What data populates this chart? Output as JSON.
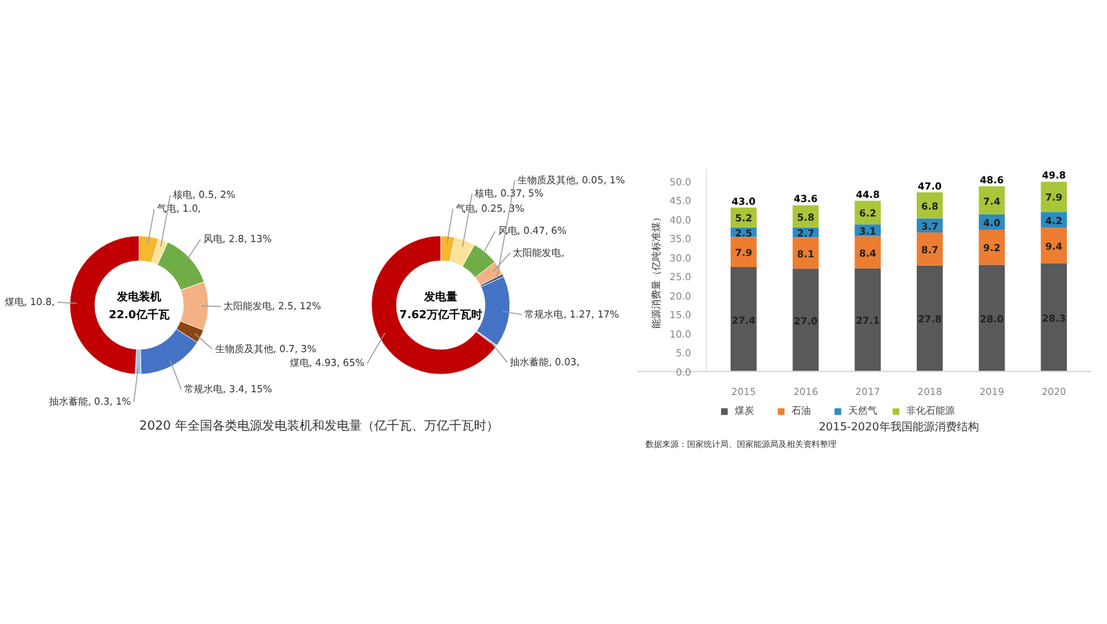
{
  "chart_data": [
    {
      "type": "donut",
      "title": "发电装机",
      "subtitle": "22.0亿千瓦",
      "categories": [
        "气电",
        "核电",
        "风电",
        "太阳能发电",
        "生物质及其他",
        "常规水电",
        "抽水蓄能",
        "煤电"
      ],
      "values": [
        1.0,
        0.5,
        2.8,
        2.5,
        0.7,
        3.4,
        0.3,
        10.8
      ],
      "value_labels": [
        ", 1.0,",
        ", 0.5, 2%",
        ", 2.8, 13%",
        ", 2.5, 12%",
        ", 0.7, 3%",
        ", 3.4, 15%",
        ", 0.3, 1%",
        ", 10.8,"
      ],
      "colors": [
        "#f5b82e",
        "#fbe39a",
        "#70ad47",
        "#f4b183",
        "#8b4513",
        "#4472c4",
        "#9dc3e6",
        "#c00000"
      ],
      "annotations": [
        "2020 年全国各类电源发电装机和发电量（亿千瓦、万亿千瓦时）"
      ]
    },
    {
      "type": "donut",
      "title": "发电量",
      "subtitle": "7.62万亿千瓦时",
      "categories": [
        "气电",
        "核电",
        "风电",
        "太阳能发电",
        "生物质及其他",
        "常规水电",
        "抽水蓄能",
        "煤电"
      ],
      "values": [
        0.25,
        0.37,
        0.47,
        0.25,
        0.05,
        1.27,
        0.03,
        4.93
      ],
      "value_labels": [
        ", 0.25, 3%",
        ", 0.37, 5%",
        ", 0.47, 6%",
        ",",
        ", 0.05, 1%",
        ", 1.27, 17%",
        ", 0.03,",
        ", 4.93, 65%"
      ],
      "colors": [
        "#f5b82e",
        "#fbe39a",
        "#70ad47",
        "#f4b183",
        "#44546a",
        "#4472c4",
        "#9dc3e6",
        "#c00000"
      ]
    },
    {
      "type": "bar",
      "stacked": true,
      "title": "2015-2020年我国能源消费结构",
      "ylabel": "能源消费量（亿吨标准煤）",
      "categories": [
        "2015",
        "2016",
        "2017",
        "2018",
        "2019",
        "2020"
      ],
      "series": [
        {
          "name": "煤炭",
          "color": "#595959",
          "values": [
            27.4,
            27.0,
            27.1,
            27.8,
            28.0,
            28.3
          ],
          "value_labels": [
            "27.4",
            "27.0",
            "27.1",
            "27.8",
            "28.0",
            "28.3"
          ]
        },
        {
          "name": "石油",
          "color": "#ed7d31",
          "values": [
            7.9,
            8.1,
            8.4,
            8.7,
            9.2,
            9.4
          ],
          "value_labels": [
            "7.9",
            "8.1",
            "8.4",
            "8.7",
            "9.2",
            "9.4"
          ]
        },
        {
          "name": "天然气",
          "color": "#2e8bc0",
          "values": [
            2.5,
            2.7,
            3.1,
            3.7,
            4.0,
            4.2
          ],
          "value_labels": [
            "2.5",
            "2.7",
            "3.1",
            "3.7",
            "4.0",
            "4.2"
          ]
        },
        {
          "name": "非化石能源",
          "color": "#a9c638",
          "values": [
            5.2,
            5.8,
            6.2,
            6.8,
            7.4,
            7.9
          ],
          "value_labels": [
            "5.2",
            "5.8",
            "6.2",
            "6.8",
            "7.4",
            "7.9"
          ]
        }
      ],
      "totals": [
        "43.0",
        "43.6",
        "44.8",
        "47.0",
        "48.6",
        "49.8"
      ],
      "ylim": [
        0,
        53
      ],
      "yticks": [
        {
          "value": 0,
          "label": "0.0"
        },
        {
          "value": 5,
          "label": "5.0"
        },
        {
          "value": 10,
          "label": "10.0"
        },
        {
          "value": 15,
          "label": "15.0"
        },
        {
          "value": 20,
          "label": "20.0"
        },
        {
          "value": 25,
          "label": "25.0"
        },
        {
          "value": 30,
          "label": "30.0"
        },
        {
          "value": 35,
          "label": "35.0"
        },
        {
          "value": 40,
          "label": "40.0"
        },
        {
          "value": 45,
          "label": "45.0"
        },
        {
          "value": 50,
          "label": "50.0"
        }
      ],
      "legend": "bottom",
      "annotations": [
        "数据来源：国家统计局、国家能源局及相关资料整理"
      ]
    }
  ]
}
